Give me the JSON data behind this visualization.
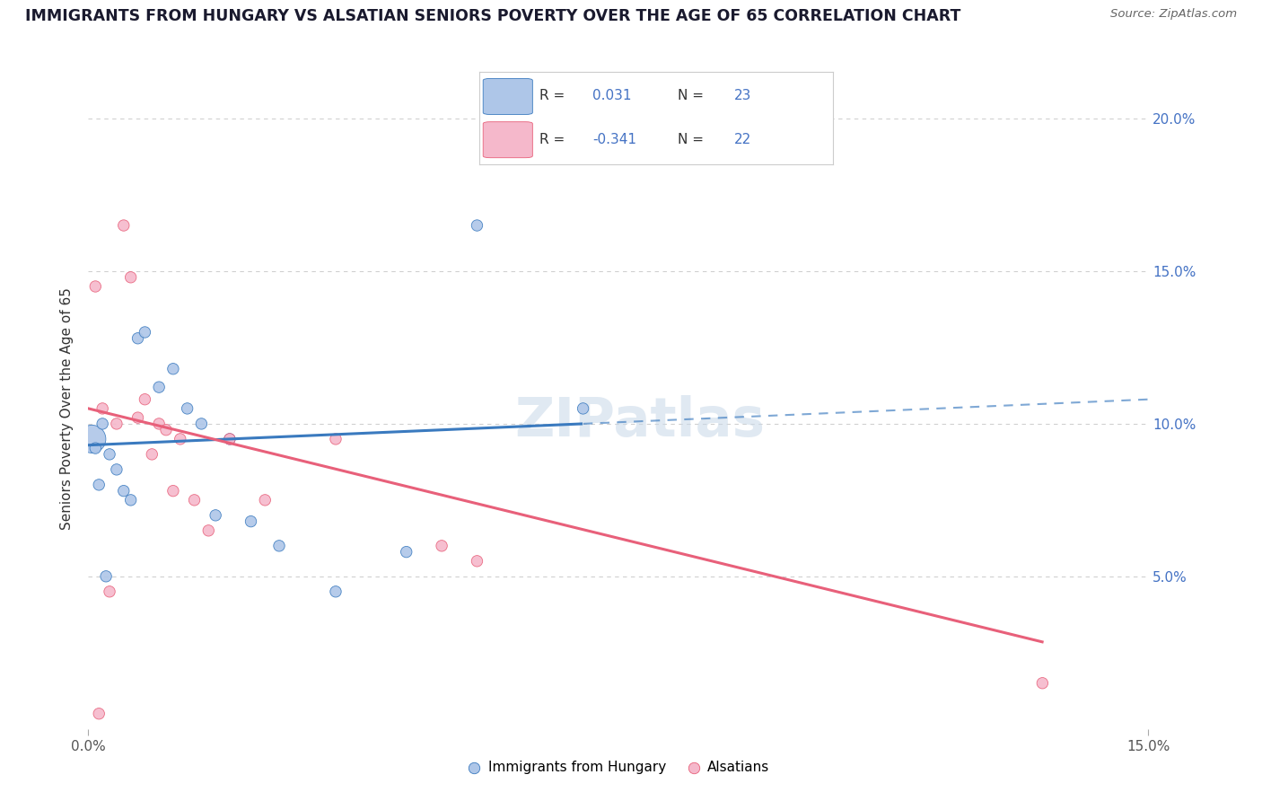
{
  "title": "IMMIGRANTS FROM HUNGARY VS ALSATIAN SENIORS POVERTY OVER THE AGE OF 65 CORRELATION CHART",
  "source": "Source: ZipAtlas.com",
  "ylabel": "Seniors Poverty Over the Age of 65",
  "xlim": [
    0.0,
    15.0
  ],
  "ylim": [
    0.0,
    21.0
  ],
  "blue_color": "#aec6e8",
  "pink_color": "#f5b8cb",
  "blue_line_color": "#3a7abf",
  "pink_line_color": "#e8607a",
  "blue_legend_color": "#aec6e8",
  "pink_legend_color": "#f5b8cb",
  "watermark": "ZIPatlas",
  "legend_label_blue": "Immigrants from Hungary",
  "legend_label_pink": "Alsatians",
  "blue_R": "0.031",
  "blue_N": "23",
  "pink_R": "-0.341",
  "pink_N": "22",
  "blue_scatter_x": [
    0.05,
    0.1,
    0.15,
    0.2,
    0.3,
    0.4,
    0.5,
    0.6,
    0.7,
    0.8,
    1.0,
    1.2,
    1.4,
    1.6,
    1.8,
    2.0,
    2.3,
    2.7,
    3.5,
    4.5,
    5.5,
    7.0,
    0.25
  ],
  "blue_scatter_y": [
    9.5,
    9.2,
    8.0,
    10.0,
    9.0,
    8.5,
    7.8,
    7.5,
    12.8,
    13.0,
    11.2,
    11.8,
    10.5,
    10.0,
    7.0,
    9.5,
    6.8,
    6.0,
    4.5,
    5.8,
    16.5,
    10.5,
    5.0
  ],
  "blue_scatter_size": [
    500,
    80,
    80,
    80,
    80,
    80,
    80,
    80,
    80,
    80,
    80,
    80,
    80,
    80,
    80,
    80,
    80,
    80,
    80,
    80,
    80,
    80,
    80
  ],
  "pink_scatter_x": [
    0.1,
    0.2,
    0.3,
    0.5,
    0.6,
    0.7,
    0.8,
    1.0,
    1.1,
    1.3,
    1.5,
    1.7,
    2.0,
    2.5,
    3.5,
    5.0,
    5.5,
    13.5,
    0.15,
    0.4,
    0.9,
    1.2
  ],
  "pink_scatter_y": [
    14.5,
    10.5,
    4.5,
    16.5,
    14.8,
    10.2,
    10.8,
    10.0,
    9.8,
    9.5,
    7.5,
    6.5,
    9.5,
    7.5,
    9.5,
    6.0,
    5.5,
    1.5,
    0.5,
    10.0,
    9.0,
    7.8
  ],
  "pink_scatter_size": [
    80,
    80,
    80,
    80,
    80,
    80,
    80,
    80,
    80,
    80,
    80,
    80,
    80,
    80,
    80,
    80,
    80,
    80,
    80,
    80,
    80,
    80
  ],
  "blue_line_x0": 0.0,
  "blue_line_y0": 9.3,
  "blue_line_x1": 15.0,
  "blue_line_y1": 10.8,
  "blue_solid_end": 7.0,
  "pink_line_x0": 0.0,
  "pink_line_y0": 10.5,
  "pink_line_x1": 15.0,
  "pink_line_y1": 2.0,
  "pink_solid_end": 13.5,
  "grid_color": "#d0d0d0",
  "ytick_vals": [
    5.0,
    10.0,
    15.0,
    20.0
  ],
  "ytick_labels": [
    "5.0%",
    "10.0%",
    "15.0%",
    "20.0%"
  ],
  "title_color": "#1a1a2e",
  "source_color": "#666666",
  "axis_label_color": "#555555",
  "right_tick_color": "#4472c4"
}
